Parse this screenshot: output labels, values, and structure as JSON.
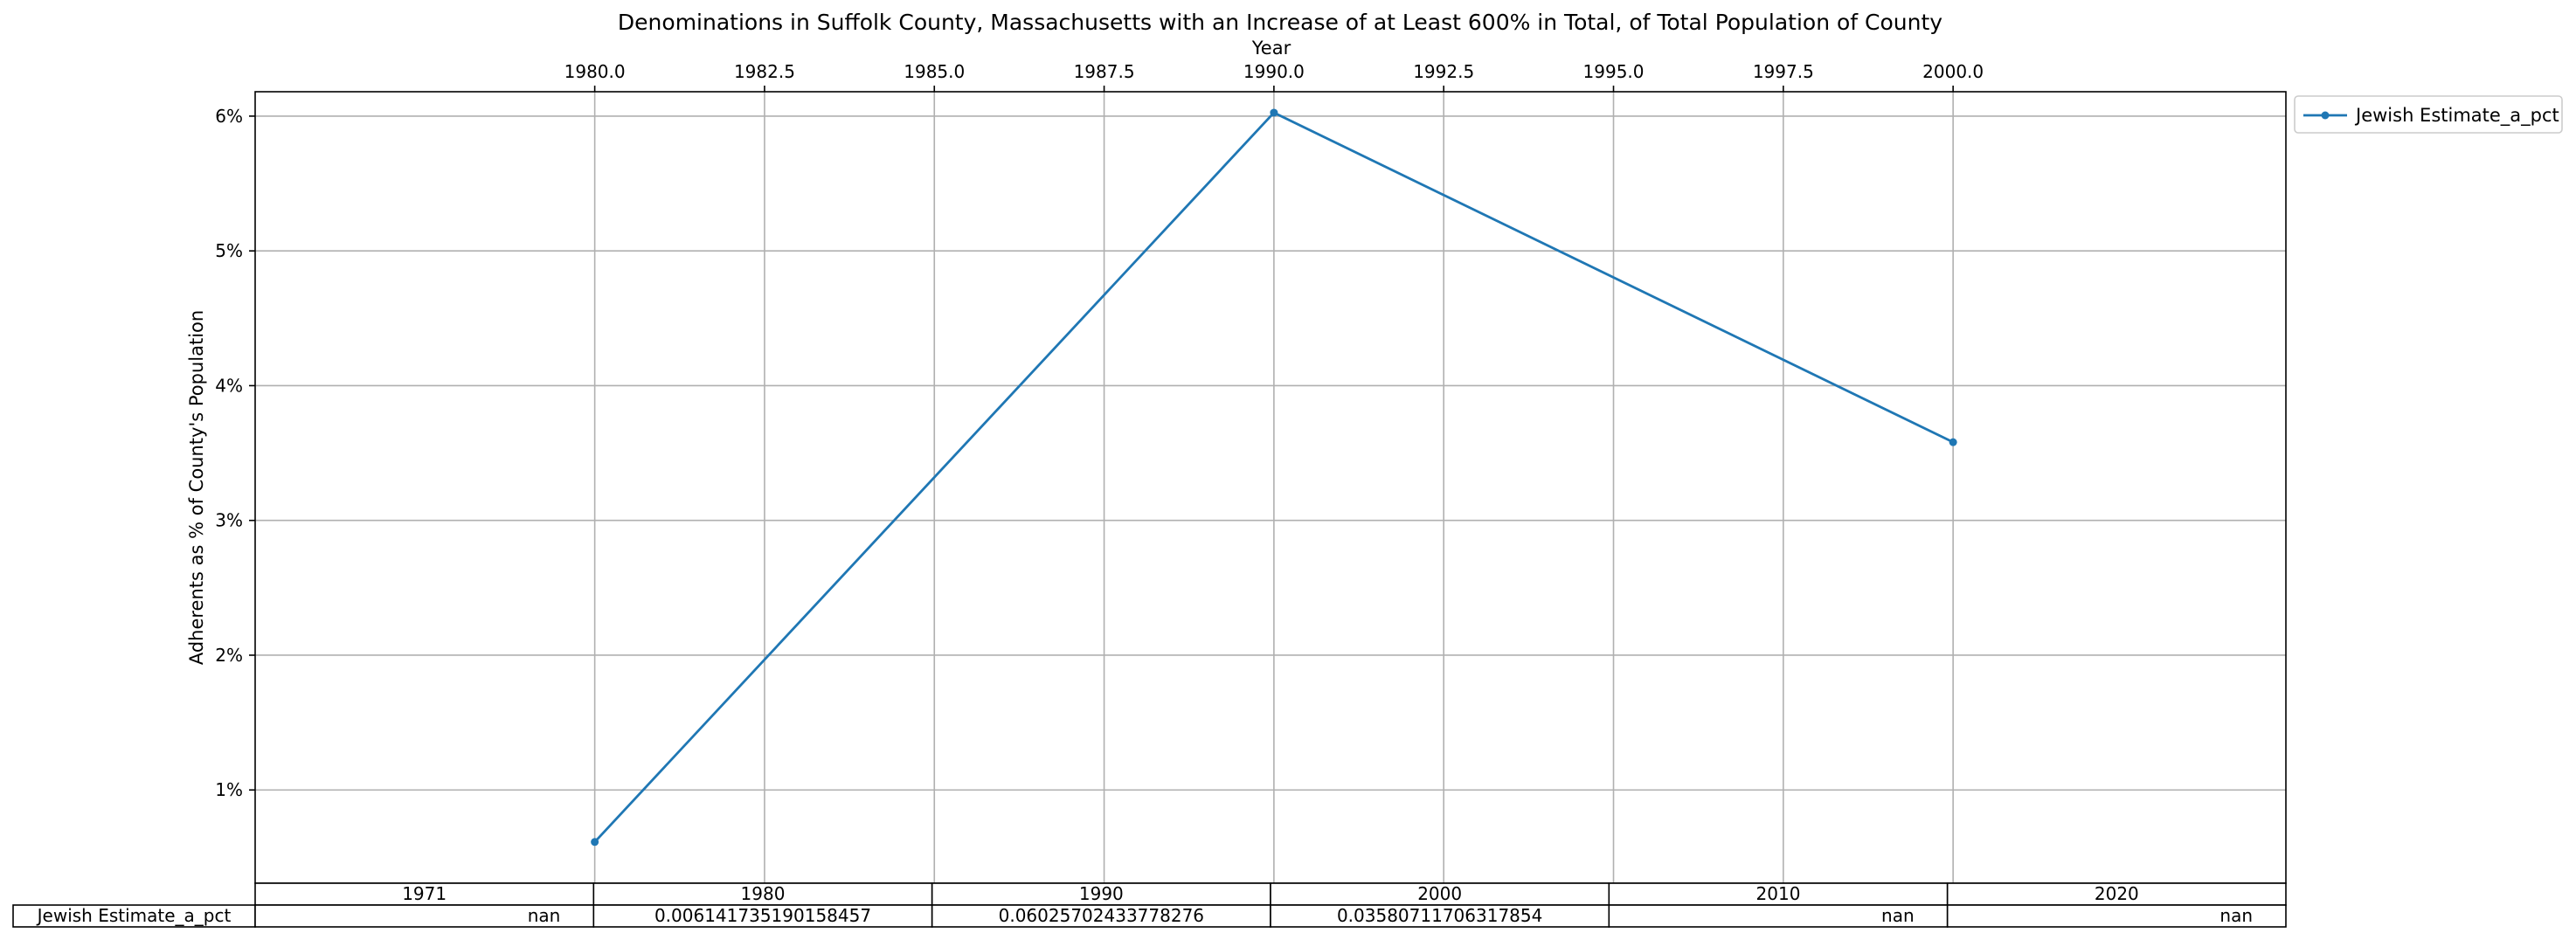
{
  "chart_data": {
    "type": "line",
    "title": "Denominations in Suffolk County, Massachusetts with an Increase of at Least 600% in Total, of Total Population of County",
    "xlabel": "Year",
    "ylabel": "Adherents as % of County's Population",
    "xlim": [
      1975.0,
      2004.9
    ],
    "ylim": [
      0.00308,
      0.06181
    ],
    "x_ticks": [
      "1980.0",
      "1982.5",
      "1985.0",
      "1987.5",
      "1990.0",
      "1992.5",
      "1995.0",
      "1997.5",
      "2000.0"
    ],
    "x_tick_values": [
      1980.0,
      1982.5,
      1985.0,
      1987.5,
      1990.0,
      1992.5,
      1995.0,
      1997.5,
      2000.0
    ],
    "x_axis_position": "top",
    "y_ticks": [
      "1%",
      "2%",
      "3%",
      "4%",
      "5%",
      "6%"
    ],
    "y_tick_values": [
      0.01,
      0.02,
      0.03,
      0.04,
      0.05,
      0.06
    ],
    "grid": true,
    "legend_position": "outside-top-right",
    "series": [
      {
        "name": "Jewish Estimate_a_pct",
        "color": "#1f77b4",
        "marker": "point",
        "x": [
          1980,
          1990,
          2000
        ],
        "y": [
          0.006141735190158457,
          0.06025702433778276,
          0.03580711706317854
        ]
      }
    ],
    "table": {
      "columns": [
        "1971",
        "1980",
        "1990",
        "2000",
        "2010",
        "2020"
      ],
      "rows": [
        {
          "label": "Jewish Estimate_a_pct",
          "cells": [
            "nan",
            "0.006141735190158457",
            "0.06025702433778276",
            "0.03580711706317854",
            "nan",
            "nan"
          ]
        }
      ]
    }
  }
}
